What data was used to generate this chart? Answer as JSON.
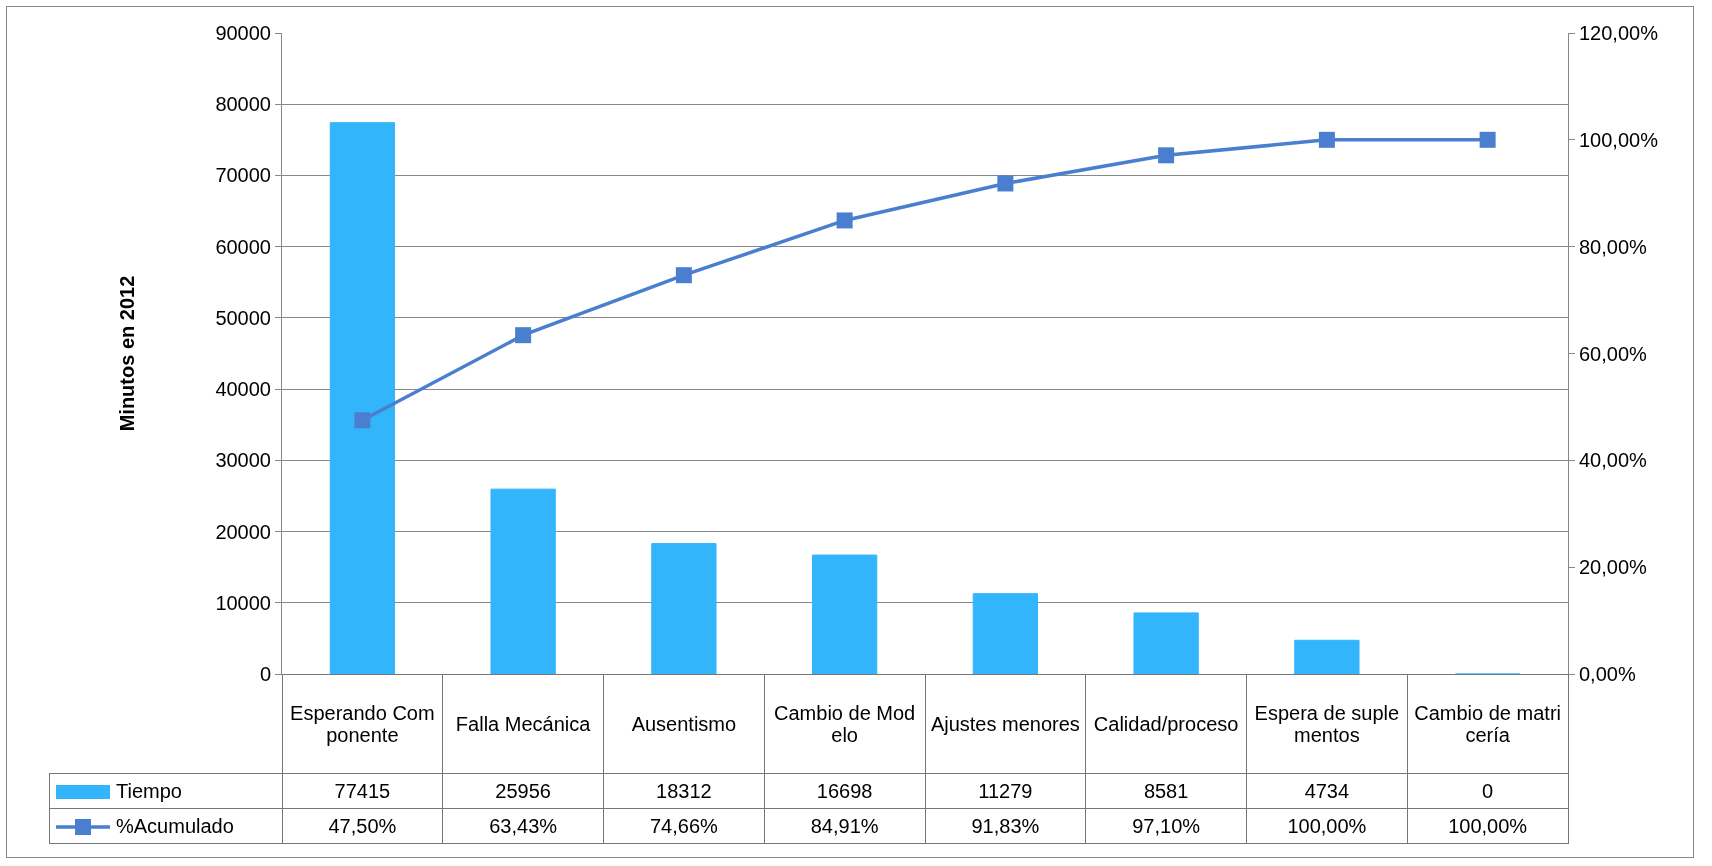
{
  "chart_data": {
    "type": "bar",
    "ylabel": "Minutos en 2012",
    "categories": [
      "Esperando Componente",
      "Falla Mecánica",
      "Ausentismo",
      "Cambio de Modelo",
      "Ajustes menores",
      "Calidad/proceso",
      "Espera de suplementos",
      "Cambio de matricería"
    ],
    "series": [
      {
        "name": "Tiempo",
        "color": "#33b5fb",
        "values": [
          77415,
          25956,
          18312,
          16698,
          11279,
          8581,
          4734,
          0
        ],
        "value_labels": [
          "77415",
          "25956",
          "18312",
          "16698",
          "11279",
          "8581",
          "4734",
          "0"
        ]
      },
      {
        "name": "%Acumulado",
        "type": "line",
        "axis": "y2",
        "color": "#4a7fd0",
        "values": [
          47.5,
          63.43,
          74.66,
          84.91,
          91.83,
          97.1,
          100,
          100
        ],
        "value_labels": [
          "47,50%",
          "63,43%",
          "74,66%",
          "84,91%",
          "91,83%",
          "97,10%",
          "100,00%",
          "100,00%"
        ]
      }
    ],
    "ylim": [
      0,
      90000
    ],
    "yticks": [
      0,
      10000,
      20000,
      30000,
      40000,
      50000,
      60000,
      70000,
      80000,
      90000
    ],
    "y2lim": [
      0,
      120
    ],
    "y2ticks": [
      {
        "value": 0,
        "label": "0,00%"
      },
      {
        "value": 20,
        "label": "20,00%"
      },
      {
        "value": 40,
        "label": "40,00%"
      },
      {
        "value": 60,
        "label": "60,00%"
      },
      {
        "value": 80,
        "label": "80,00%"
      },
      {
        "value": 100,
        "label": "100,00%"
      },
      {
        "value": 120,
        "label": "120,00%"
      }
    ],
    "grid": "y",
    "legend": "bottom left",
    "marker": "square",
    "line_style": "solid"
  }
}
